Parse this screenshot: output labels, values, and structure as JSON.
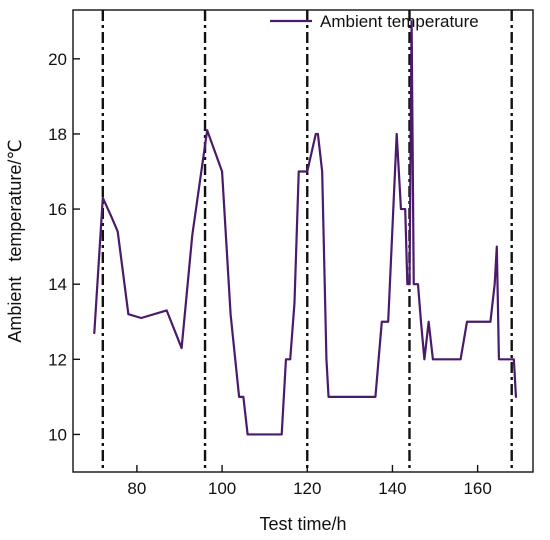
{
  "chart_data": {
    "type": "line",
    "xlabel": "Test time/h",
    "ylabel": "Ambient   temperature/℃",
    "xlim": [
      65,
      173
    ],
    "ylim": [
      9,
      21.3
    ],
    "x_ticks": [
      80,
      100,
      120,
      140,
      160
    ],
    "y_ticks": [
      10,
      12,
      14,
      16,
      18,
      20
    ],
    "vertical_reference_lines": [
      72,
      96,
      120,
      144,
      168
    ],
    "grid": false,
    "legend_position": "top-right",
    "series": [
      {
        "name": "Ambient temperature",
        "color": "#4a1a6b",
        "x": [
          70,
          72,
          74,
          75.5,
          78,
          81,
          87,
          90.5,
          93,
          96.5,
          100,
          102,
          104,
          105,
          106,
          110,
          112,
          114,
          115,
          116,
          117,
          118,
          119,
          120,
          121,
          122,
          122.5,
          123.5,
          124.5,
          125,
          126,
          130,
          133,
          136,
          137.5,
          139,
          141,
          142,
          143,
          143.5,
          144,
          144.5,
          145,
          146,
          146.7,
          147.5,
          148.5,
          149.5,
          150.3,
          151,
          152,
          153,
          154,
          155,
          156,
          157.5,
          158,
          159,
          160,
          161,
          162,
          163,
          164,
          164.5,
          165,
          166,
          167,
          168,
          168.5,
          169
        ],
        "y": [
          12.7,
          16.3,
          15.8,
          15.4,
          13.2,
          13.1,
          13.3,
          12.3,
          15.3,
          18.1,
          17.0,
          13.2,
          11.0,
          11.0,
          10.0,
          10.0,
          10.0,
          10.0,
          12.0,
          12.0,
          13.5,
          17.0,
          17.0,
          17.0,
          17.5,
          18.0,
          18.0,
          17.0,
          12.0,
          11.0,
          11.0,
          11.0,
          11.0,
          11.0,
          13.0,
          13.0,
          18.0,
          16.0,
          16.0,
          14.0,
          14.0,
          21.0,
          14.0,
          14.0,
          13.0,
          12.0,
          13.0,
          12.0,
          12.0,
          12.0,
          12.0,
          12.0,
          12.0,
          12.0,
          12.0,
          13.0,
          13.0,
          13.0,
          13.0,
          13.0,
          13.0,
          13.0,
          14.0,
          15.0,
          12.0,
          12.0,
          12.0,
          12.0,
          12.0,
          11.0
        ]
      }
    ]
  }
}
